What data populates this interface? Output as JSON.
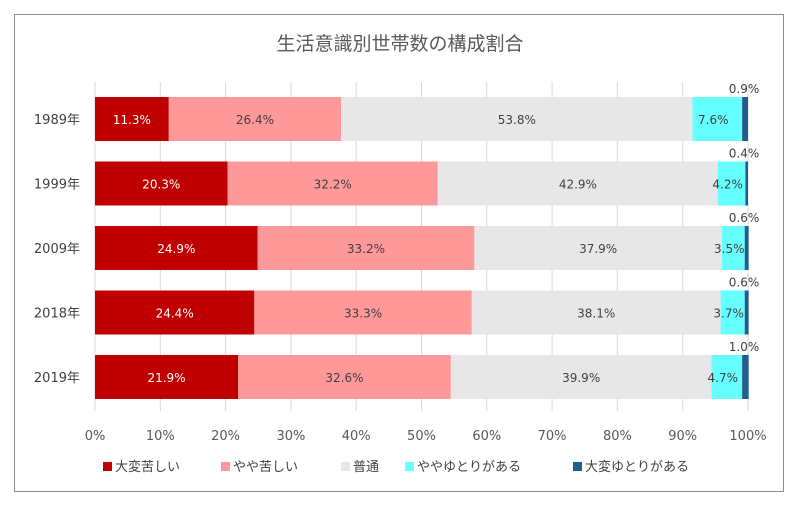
{
  "chart_data": {
    "type": "bar",
    "orientation": "horizontal",
    "stacked": true,
    "title": "生活意識別世帯数の構成割合",
    "categories": [
      "1989年",
      "1999年",
      "2009年",
      "2018年",
      "2019年"
    ],
    "xlim": [
      0,
      100
    ],
    "x_ticks": [
      "0%",
      "10%",
      "20%",
      "30%",
      "40%",
      "50%",
      "60%",
      "70%",
      "80%",
      "90%",
      "100%"
    ],
    "grid": true,
    "legend_position": "bottom",
    "series": [
      {
        "name": "大変苦しい",
        "color": "#C00000",
        "label_color": "#ffffff",
        "values": [
          11.3,
          20.3,
          24.9,
          24.4,
          21.9
        ],
        "labels": [
          "11.3%",
          "20.3%",
          "24.9%",
          "24.4%",
          "21.9%"
        ]
      },
      {
        "name": "やや苦しい",
        "color": "#FF9999",
        "label_color": "#404040",
        "values": [
          26.4,
          32.2,
          33.2,
          33.3,
          32.6
        ],
        "labels": [
          "26.4%",
          "32.2%",
          "33.2%",
          "33.3%",
          "32.6%"
        ]
      },
      {
        "name": "普通",
        "color": "#E7E7E7",
        "label_color": "#404040",
        "values": [
          53.8,
          42.9,
          37.9,
          38.1,
          39.9
        ],
        "labels": [
          "53.8%",
          "42.9%",
          "37.9%",
          "38.1%",
          "39.9%"
        ]
      },
      {
        "name": "ややゆとりがある",
        "color": "#66FFFF",
        "label_color": "#404040",
        "values": [
          7.6,
          4.2,
          3.5,
          3.7,
          4.7
        ],
        "labels": [
          "7.6%",
          "4.2%",
          "3.5%",
          "3.7%",
          "4.7%"
        ]
      },
      {
        "name": "大変ゆとりがある",
        "color": "#1F5F8B",
        "label_color": "#404040",
        "values": [
          0.9,
          0.4,
          0.6,
          0.6,
          1.0
        ],
        "labels": [
          "0.9%",
          "0.4%",
          "0.6%",
          "0.6%",
          "1.0%"
        ]
      }
    ]
  }
}
